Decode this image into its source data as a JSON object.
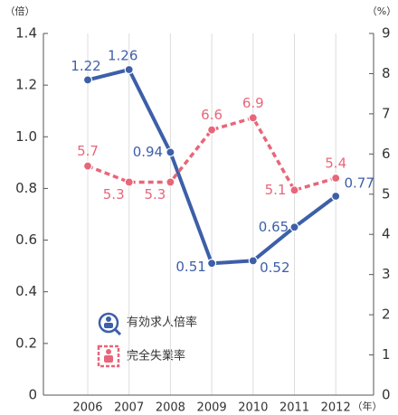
{
  "chart_data": {
    "type": "line",
    "y_axis_label": "（倍）",
    "y2_axis_label": "（%）",
    "x_axis_label": "（年）",
    "categories": [
      "2006",
      "2007",
      "2008",
      "2009",
      "2010",
      "2011",
      "2012"
    ],
    "ylim": [
      0,
      1.4
    ],
    "yticks": [
      0,
      0.2,
      0.4,
      0.6,
      0.8,
      {
        "value": 1,
        "label": "1.0"
      },
      1.2,
      1.4
    ],
    "y2lim": [
      0,
      9
    ],
    "y2ticks": [
      0,
      1,
      2,
      3,
      4,
      5,
      6,
      7,
      8,
      9
    ],
    "grid": true,
    "series": [
      {
        "name": "有効求人倍率",
        "color": "#3d5fa9",
        "values": [
          1.22,
          1.26,
          0.94,
          0.51,
          0.52,
          0.65,
          0.77
        ]
      },
      {
        "name": "完全失業率",
        "color": "#e8667a",
        "axis": "y2",
        "dashed": true,
        "values": [
          5.7,
          5.3,
          5.3,
          6.6,
          6.9,
          5.1,
          5.4
        ]
      }
    ]
  }
}
